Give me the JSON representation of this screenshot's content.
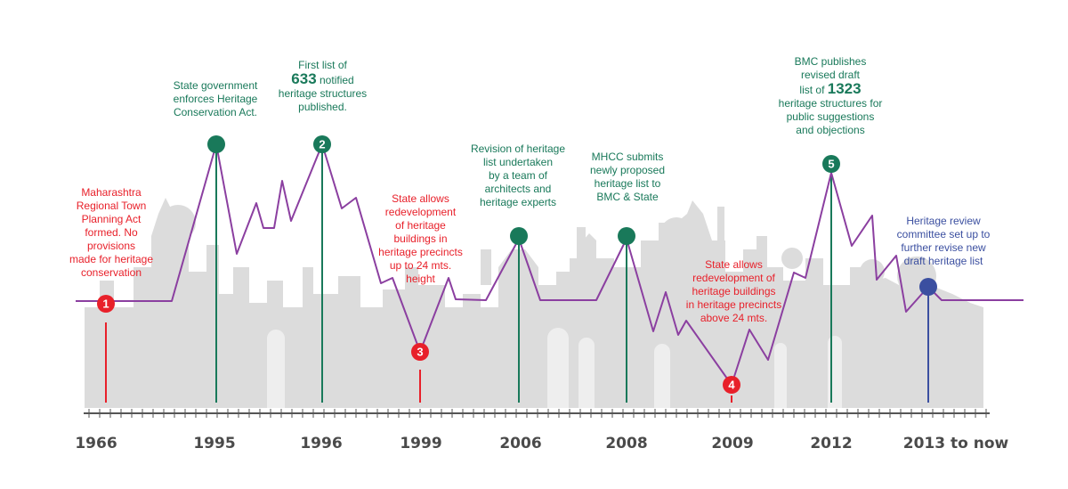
{
  "colors": {
    "green": "#19795a",
    "red": "#e8202a",
    "blue": "#3b4fa0",
    "purple": "#8b3fa0",
    "axis": "#555555",
    "skyline": "#dcdcdc"
  },
  "timeline": {
    "years": [
      "1966",
      "1995",
      "1996",
      "1999",
      "2006",
      "2008",
      "2009",
      "2012",
      "2013 to now"
    ]
  },
  "events": [
    {
      "id": "e1966",
      "year": "1966",
      "marker": "1",
      "color": "red",
      "lines": [
        "Maharashtra",
        "Regional Town",
        "Planning Act",
        "formed. No",
        "provisions",
        "made for heritage",
        "conservation"
      ]
    },
    {
      "id": "e1995",
      "year": "1995",
      "marker": "",
      "color": "green",
      "lines": [
        "State government",
        "enforces Heritage",
        "Conservation Act."
      ]
    },
    {
      "id": "e1996",
      "year": "1996",
      "marker": "2",
      "color": "green",
      "pre": "First list of",
      "big": "633",
      "post": " notified",
      "lines": [
        "heritage structures",
        "published."
      ]
    },
    {
      "id": "e1999",
      "year": "1999",
      "marker": "3",
      "color": "red",
      "lines": [
        "State allows",
        "redevelopment",
        "of heritage",
        "buildings in",
        "heritage precincts",
        "up to 24 mts.",
        "height"
      ]
    },
    {
      "id": "e2006",
      "year": "2006",
      "marker": "",
      "color": "green",
      "lines": [
        "Revision of heritage",
        "list undertaken",
        "by a team of",
        "architects and",
        "heritage experts"
      ]
    },
    {
      "id": "e2008",
      "year": "2008",
      "marker": "",
      "color": "green",
      "lines": [
        "MHCC submits",
        "newly proposed",
        "heritage list to",
        "BMC & State"
      ]
    },
    {
      "id": "e2009",
      "year": "2009",
      "marker": "4",
      "color": "red",
      "lines": [
        "State allows",
        "redevelopment of",
        "heritage buildings",
        "in heritage precincts",
        "above 24 mts."
      ]
    },
    {
      "id": "e2012",
      "year": "2012",
      "marker": "5",
      "color": "green",
      "lines_top": [
        "BMC publishes",
        "revised draft"
      ],
      "pre": "list of ",
      "big": "1323",
      "lines": [
        "heritage structures for",
        "public suggestions",
        "and objections"
      ]
    },
    {
      "id": "e2013",
      "year": "2013 to now",
      "marker": "",
      "color": "blue",
      "lines": [
        "Heritage review",
        "committee set up to",
        "further revise new",
        "draft heritage list"
      ]
    }
  ]
}
